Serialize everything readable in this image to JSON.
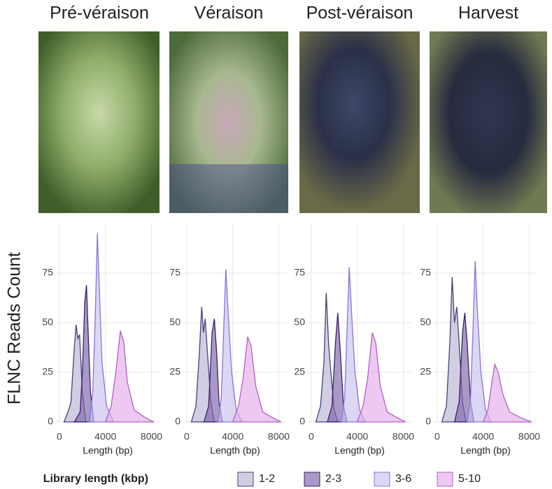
{
  "chart_data": [
    {
      "type": "area",
      "title": "Pré-véraison",
      "ylabel": "FLNC Reads Count",
      "xlabel": "Length (bp)",
      "legend_title": "Library length (kbp)",
      "xlim": [
        -300,
        8700
      ],
      "xticks": [
        0,
        4000,
        8000
      ],
      "ylim": [
        0,
        100
      ],
      "yticks": [
        0,
        25,
        50,
        75
      ],
      "grid": true,
      "series": [
        {
          "name": "1-2",
          "color": "#4a3f7a",
          "fill": "#b8b3d4",
          "x": [
            400,
            800,
            1000,
            1300,
            1450,
            1600,
            1750,
            2000,
            2300
          ],
          "values": [
            0,
            6,
            10,
            38,
            49,
            42,
            44,
            15,
            0
          ]
        },
        {
          "name": "2-3",
          "color": "#3b1f6b",
          "fill": "#7d62a8",
          "x": [
            1300,
            1800,
            2000,
            2200,
            2350,
            2500,
            2700,
            3000
          ],
          "values": [
            0,
            5,
            25,
            60,
            69,
            45,
            15,
            0
          ]
        },
        {
          "name": "3-6",
          "color": "#8a73d9",
          "fill": "#cbc2f0",
          "x": [
            2600,
            2900,
            3100,
            3300,
            3450,
            3700,
            4100,
            4700
          ],
          "values": [
            0,
            15,
            50,
            95,
            70,
            30,
            8,
            0
          ]
        },
        {
          "name": "5-10",
          "color": "#b45fc2",
          "fill": "#e4acea",
          "x": [
            4000,
            4500,
            4900,
            5300,
            5600,
            5900,
            6500,
            7500,
            8200
          ],
          "values": [
            0,
            8,
            25,
            46,
            40,
            20,
            6,
            2,
            0
          ]
        }
      ]
    },
    {
      "type": "area",
      "title": "Véraison",
      "xlabel": "Length (bp)",
      "xlim": [
        -300,
        8700
      ],
      "xticks": [
        0,
        4000,
        8000
      ],
      "ylim": [
        0,
        100
      ],
      "yticks": [
        0,
        25,
        50,
        75
      ],
      "grid": true,
      "series": [
        {
          "x": [
            400,
            800,
            1100,
            1300,
            1450,
            1600,
            1800,
            2100,
            2400
          ],
          "values": [
            0,
            8,
            35,
            58,
            45,
            52,
            35,
            10,
            0
          ]
        },
        {
          "x": [
            1500,
            1900,
            2200,
            2400,
            2600,
            2800,
            3100
          ],
          "values": [
            0,
            8,
            45,
            52,
            35,
            10,
            0
          ]
        },
        {
          "x": [
            2700,
            3000,
            3200,
            3400,
            3600,
            3900,
            4300,
            4800
          ],
          "values": [
            0,
            12,
            45,
            77,
            55,
            25,
            6,
            0
          ]
        },
        {
          "x": [
            4000,
            4500,
            4900,
            5300,
            5600,
            6000,
            6600,
            7500,
            8200
          ],
          "values": [
            0,
            8,
            22,
            43,
            38,
            18,
            5,
            2,
            0
          ]
        }
      ]
    },
    {
      "type": "area",
      "title": "Post-véraison",
      "xlabel": "Length (bp)",
      "xlim": [
        -300,
        8700
      ],
      "xticks": [
        0,
        4000,
        8000
      ],
      "ylim": [
        0,
        100
      ],
      "yticks": [
        0,
        25,
        50,
        75
      ],
      "grid": true,
      "series": [
        {
          "x": [
            400,
            800,
            1100,
            1300,
            1500,
            1700,
            2000,
            2300
          ],
          "values": [
            0,
            8,
            30,
            65,
            40,
            25,
            6,
            0
          ]
        },
        {
          "x": [
            1400,
            1800,
            2100,
            2300,
            2500,
            2800,
            3100
          ],
          "values": [
            0,
            8,
            40,
            55,
            38,
            8,
            0
          ]
        },
        {
          "x": [
            2600,
            2900,
            3100,
            3300,
            3500,
            3800,
            4200,
            4700
          ],
          "values": [
            0,
            12,
            45,
            78,
            55,
            25,
            6,
            0
          ]
        },
        {
          "x": [
            4000,
            4500,
            4900,
            5300,
            5600,
            6000,
            6600,
            7500,
            8200
          ],
          "values": [
            0,
            8,
            22,
            45,
            40,
            18,
            5,
            2,
            0
          ]
        }
      ]
    },
    {
      "type": "area",
      "title": "Harvest",
      "xlabel": "Length (bp)",
      "xlim": [
        -300,
        8700
      ],
      "xticks": [
        0,
        4000,
        8000
      ],
      "ylim": [
        0,
        100
      ],
      "yticks": [
        0,
        25,
        50,
        75
      ],
      "grid": true,
      "series": [
        {
          "x": [
            400,
            800,
            1100,
            1300,
            1500,
            1700,
            1900,
            2200,
            2500
          ],
          "values": [
            0,
            8,
            40,
            73,
            50,
            58,
            40,
            10,
            0
          ]
        },
        {
          "x": [
            1500,
            1900,
            2200,
            2400,
            2600,
            2900,
            3200
          ],
          "values": [
            0,
            10,
            45,
            55,
            40,
            10,
            0
          ]
        },
        {
          "x": [
            2600,
            2900,
            3100,
            3300,
            3500,
            3800,
            4200,
            4700
          ],
          "values": [
            0,
            12,
            45,
            81,
            55,
            25,
            6,
            0
          ]
        },
        {
          "x": [
            4000,
            4400,
            4700,
            5000,
            5300,
            5700,
            6300,
            7300,
            8200
          ],
          "values": [
            0,
            6,
            18,
            29,
            25,
            14,
            5,
            2,
            0
          ]
        }
      ]
    }
  ]
}
